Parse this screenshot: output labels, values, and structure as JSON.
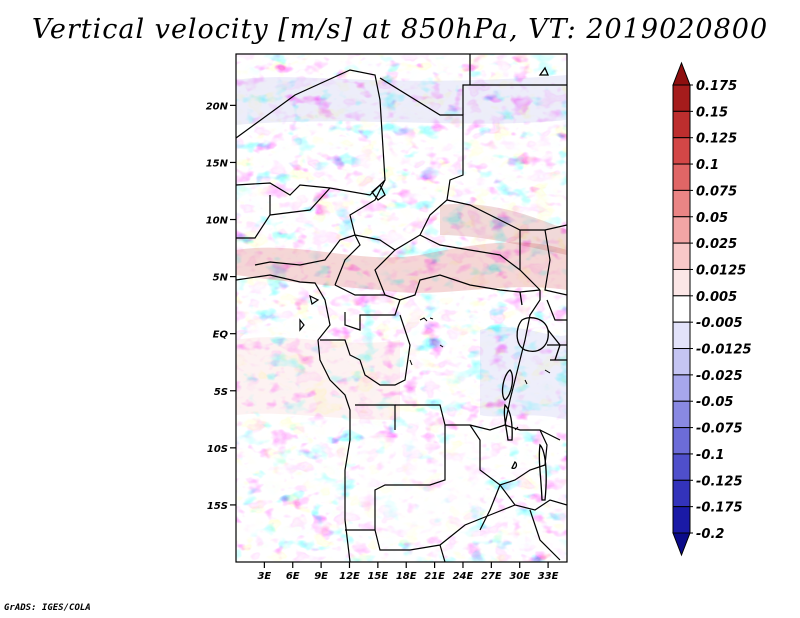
{
  "title": "Vertical velocity [m/s] at 850hPa, VT: 2019020800",
  "footer": "GrADS: IGES/COLA",
  "map": {
    "lat_range": [
      -20,
      24.5
    ],
    "lon_range": [
      0,
      35
    ],
    "lat_ticks": [
      {
        "value": 20,
        "label": "20N"
      },
      {
        "value": 15,
        "label": "15N"
      },
      {
        "value": 10,
        "label": "10N"
      },
      {
        "value": 5,
        "label": "5N"
      },
      {
        "value": 0,
        "label": "EQ"
      },
      {
        "value": -5,
        "label": "5S"
      },
      {
        "value": -10,
        "label": "10S"
      },
      {
        "value": -15,
        "label": "15S"
      }
    ],
    "lon_ticks": [
      {
        "value": 3,
        "label": "3E"
      },
      {
        "value": 6,
        "label": "6E"
      },
      {
        "value": 9,
        "label": "9E"
      },
      {
        "value": 12,
        "label": "12E"
      },
      {
        "value": 15,
        "label": "15E"
      },
      {
        "value": 18,
        "label": "18E"
      },
      {
        "value": 21,
        "label": "21E"
      },
      {
        "value": 24,
        "label": "24E"
      },
      {
        "value": 27,
        "label": "27E"
      },
      {
        "value": 30,
        "label": "30E"
      },
      {
        "value": 33,
        "label": "33E"
      }
    ]
  },
  "colorbar": {
    "labels": [
      "0.175",
      "0.15",
      "0.125",
      "0.1",
      "0.075",
      "0.05",
      "0.025",
      "0.0125",
      "0.005",
      "-0.005",
      "-0.0125",
      "-0.025",
      "-0.05",
      "-0.075",
      "-0.1",
      "-0.125",
      "-0.175",
      "-0.2"
    ],
    "colors": [
      "#8e0f0f",
      "#a51c1c",
      "#bd2e2e",
      "#d34747",
      "#e06666",
      "#ea8585",
      "#f2a5a5",
      "#f8c8c8",
      "#fce6e6",
      "#ffffff",
      "#e2e2fa",
      "#c5c5f3",
      "#a7a7ec",
      "#8989e3",
      "#6c6cd8",
      "#4f4fcb",
      "#3333bb",
      "#1a1aa6",
      "#0b0b8a"
    ]
  }
}
